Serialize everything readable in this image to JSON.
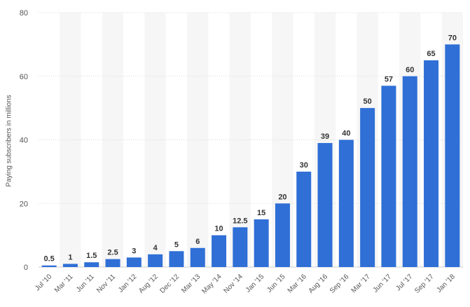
{
  "chart_data": {
    "type": "bar",
    "ylabel": "Paying subscribers in millions",
    "xlabel": "",
    "ylim": [
      0,
      80
    ],
    "yticks": [
      0,
      20,
      40,
      60,
      80
    ],
    "grid": true,
    "categories": [
      "Jul '10",
      "Mar '11",
      "Jun '11",
      "Nov '11",
      "Jan '12",
      "Aug '12",
      "Dec '12",
      "Mar '13",
      "May '14",
      "Nov '14",
      "Jan '15",
      "Jun '15",
      "Mar '16",
      "Aug '16",
      "Sep '16",
      "Mar '17",
      "Jun '17",
      "Jul '17",
      "Sep '17",
      "Jan '18"
    ],
    "values": [
      0.5,
      1,
      1.5,
      2.5,
      3,
      4,
      5,
      6,
      10,
      12.5,
      15,
      20,
      30,
      39,
      40,
      50,
      57,
      60,
      65,
      70
    ],
    "bar_color": "#2f6fd6",
    "band_color": "#f6f6f6"
  }
}
